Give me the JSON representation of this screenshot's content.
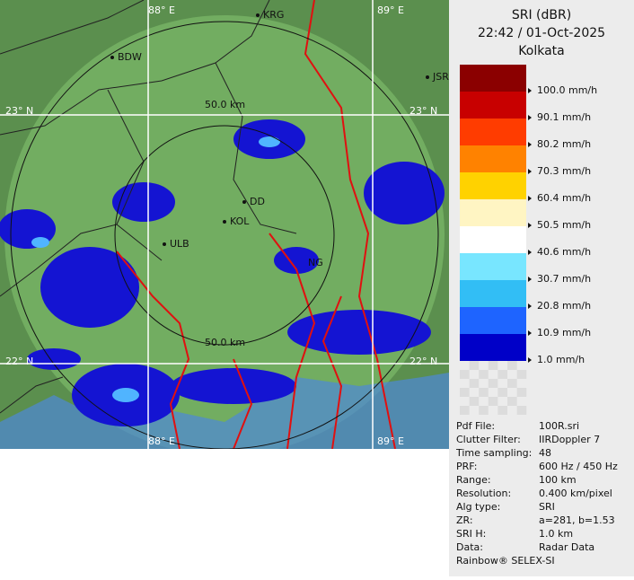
{
  "map": {
    "grid_labels": {
      "lon_top_1": "88° E",
      "lon_top_2": "89° E",
      "lat_left_1": "23° N",
      "lat_right_1": "23° N",
      "lat_left_2": "22° N",
      "lat_right_2": "22° N",
      "lon_bottom_1": "88° E",
      "lon_bottom_2": "89° E"
    },
    "places": {
      "krg": "KRG",
      "bdw": "BDW",
      "jsr": "JSR",
      "dd": "DD",
      "kol": "KOL",
      "ulb": "ULB",
      "ng": "NG"
    },
    "range_labels": {
      "outer": "50.0 km",
      "inner": "50.0 km"
    }
  },
  "legend": {
    "title": "SRI (dBR)",
    "time": "22:42 / 01-Oct-2025",
    "station": "Kolkata",
    "levels": [
      {
        "label": "100.0 mm/h",
        "color": "#8b0000"
      },
      {
        "label": "90.1 mm/h",
        "color": "#c80000"
      },
      {
        "label": "80.2 mm/h",
        "color": "#ff3c00"
      },
      {
        "label": "70.3 mm/h",
        "color": "#ff8200"
      },
      {
        "label": "60.4 mm/h",
        "color": "#ffd200"
      },
      {
        "label": "50.5 mm/h",
        "color": "#fff5c3"
      },
      {
        "label": "40.6 mm/h",
        "color": "#ffffff"
      },
      {
        "label": "30.7 mm/h",
        "color": "#78e6ff"
      },
      {
        "label": "20.8 mm/h",
        "color": "#32bef5"
      },
      {
        "label": "10.9 mm/h",
        "color": "#1e64ff"
      },
      {
        "label": "1.0 mm/h",
        "color": "#0000c8"
      }
    ]
  },
  "info": {
    "rows": [
      [
        "Pdf File:",
        "100R.sri"
      ],
      [
        "Clutter Filter:",
        "IIRDoppler 7"
      ],
      [
        "Time sampling:",
        "48"
      ],
      [
        "PRF:",
        "600 Hz / 450 Hz"
      ],
      [
        "Range:",
        "100 km"
      ],
      [
        "Resolution:",
        "0.400 km/pixel"
      ],
      [
        "Alg type:",
        "SRI"
      ],
      [
        "ZR:",
        "a=281, b=1.53"
      ],
      [
        "SRI H:",
        "1.0 km"
      ],
      [
        "Data:",
        "Radar Data"
      ]
    ],
    "footer": "Rainbow® SELEX-SI"
  }
}
